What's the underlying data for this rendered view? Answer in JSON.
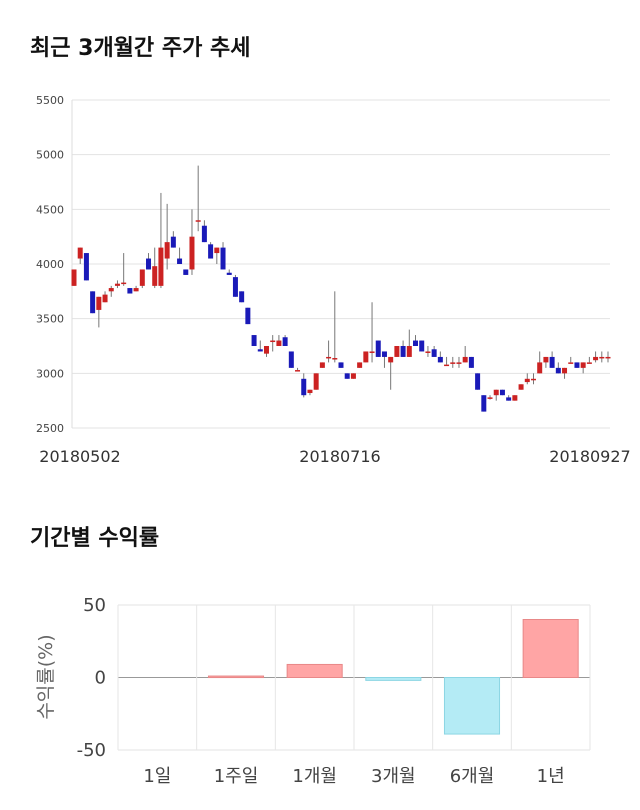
{
  "sections": {
    "price_title": "최근 3개월간 주가 추세",
    "return_title": "기간별 수익률"
  },
  "chart_data": [
    {
      "type": "candlestick",
      "title": "최근 3개월간 주가 추세",
      "ylim": [
        2500,
        5500
      ],
      "yticks": [
        2500,
        3000,
        3500,
        4000,
        4500,
        5000,
        5500
      ],
      "xtick_labels": [
        "20180502",
        "20180716",
        "20180927"
      ],
      "grid": true,
      "colors": {
        "up": "#cc2222",
        "down": "#1a1ab8",
        "wick": "#777777"
      },
      "ohlc": [
        [
          3800,
          3950,
          3800,
          3950
        ],
        [
          4050,
          4150,
          4000,
          4150
        ],
        [
          4100,
          4100,
          3850,
          3850
        ],
        [
          3750,
          3750,
          3550,
          3550
        ],
        [
          3580,
          3700,
          3420,
          3700
        ],
        [
          3650,
          3750,
          3650,
          3720
        ],
        [
          3750,
          3800,
          3700,
          3780
        ],
        [
          3800,
          3850,
          3780,
          3820
        ],
        [
          3820,
          4100,
          3800,
          3830
        ],
        [
          3780,
          3780,
          3730,
          3730
        ],
        [
          3750,
          3800,
          3750,
          3780
        ],
        [
          3800,
          3950,
          3780,
          3950
        ],
        [
          4050,
          4100,
          3950,
          3950
        ],
        [
          3800,
          4150,
          3780,
          3980
        ],
        [
          3800,
          4650,
          3780,
          4150
        ],
        [
          4050,
          4550,
          3950,
          4200
        ],
        [
          4250,
          4300,
          4150,
          4150
        ],
        [
          4050,
          4150,
          4000,
          4000
        ],
        [
          3950,
          3950,
          3900,
          3900
        ],
        [
          3950,
          4500,
          3900,
          4250
        ],
        [
          4400,
          4900,
          4300,
          4400
        ],
        [
          4350,
          4400,
          4200,
          4200
        ],
        [
          4180,
          4200,
          4050,
          4050
        ],
        [
          4100,
          4150,
          4000,
          4150
        ],
        [
          4150,
          4200,
          3950,
          3950
        ],
        [
          3920,
          3950,
          3900,
          3900
        ],
        [
          3880,
          3900,
          3700,
          3700
        ],
        [
          3750,
          3750,
          3650,
          3650
        ],
        [
          3600,
          3600,
          3450,
          3450
        ],
        [
          3350,
          3350,
          3250,
          3250
        ],
        [
          3220,
          3300,
          3200,
          3200
        ],
        [
          3180,
          3250,
          3150,
          3250
        ],
        [
          3300,
          3350,
          3200,
          3300
        ],
        [
          3250,
          3350,
          3250,
          3300
        ],
        [
          3330,
          3350,
          3250,
          3250
        ],
        [
          3200,
          3200,
          3050,
          3050
        ],
        [
          3030,
          3050,
          3030,
          3030
        ],
        [
          2950,
          3000,
          2780,
          2800
        ],
        [
          2820,
          2850,
          2800,
          2850
        ],
        [
          2850,
          3000,
          2850,
          3000
        ],
        [
          3050,
          3100,
          3050,
          3100
        ],
        [
          3150,
          3300,
          3100,
          3150
        ],
        [
          3140,
          3750,
          3100,
          3140
        ],
        [
          3100,
          3100,
          3050,
          3050
        ],
        [
          3000,
          3000,
          2950,
          2950
        ],
        [
          2950,
          3000,
          2950,
          3000
        ],
        [
          3050,
          3100,
          3050,
          3100
        ],
        [
          3100,
          3200,
          3100,
          3200
        ],
        [
          3200,
          3650,
          3100,
          3200
        ],
        [
          3300,
          3300,
          3150,
          3150
        ],
        [
          3200,
          3200,
          3050,
          3150
        ],
        [
          3100,
          3150,
          2850,
          3150
        ],
        [
          3150,
          3250,
          3150,
          3250
        ],
        [
          3250,
          3300,
          3150,
          3150
        ],
        [
          3150,
          3400,
          3150,
          3250
        ],
        [
          3300,
          3350,
          3250,
          3250
        ],
        [
          3300,
          3300,
          3200,
          3200
        ],
        [
          3200,
          3250,
          3150,
          3200
        ],
        [
          3220,
          3250,
          3150,
          3150
        ],
        [
          3150,
          3200,
          3100,
          3100
        ],
        [
          3080,
          3150,
          3080,
          3080
        ],
        [
          3100,
          3150,
          3050,
          3100
        ],
        [
          3100,
          3150,
          3050,
          3100
        ],
        [
          3100,
          3250,
          3100,
          3150
        ],
        [
          3150,
          3150,
          3050,
          3050
        ],
        [
          3000,
          3000,
          2850,
          2850
        ],
        [
          2800,
          2800,
          2650,
          2650
        ],
        [
          2780,
          2800,
          2760,
          2780
        ],
        [
          2800,
          2850,
          2750,
          2850
        ],
        [
          2850,
          2850,
          2800,
          2800
        ],
        [
          2780,
          2800,
          2750,
          2750
        ],
        [
          2750,
          2800,
          2750,
          2800
        ],
        [
          2850,
          2900,
          2850,
          2900
        ],
        [
          2920,
          3000,
          2900,
          2950
        ],
        [
          2950,
          3000,
          2900,
          2950
        ],
        [
          3000,
          3200,
          3000,
          3100
        ],
        [
          3100,
          3150,
          3050,
          3150
        ],
        [
          3150,
          3200,
          3050,
          3050
        ],
        [
          3050,
          3100,
          3000,
          3000
        ],
        [
          3000,
          3050,
          2950,
          3050
        ],
        [
          3100,
          3150,
          3100,
          3100
        ],
        [
          3100,
          3100,
          3050,
          3050
        ],
        [
          3050,
          3100,
          3000,
          3100
        ],
        [
          3100,
          3150,
          3100,
          3100
        ],
        [
          3120,
          3200,
          3100,
          3150
        ],
        [
          3150,
          3200,
          3100,
          3150
        ],
        [
          3150,
          3200,
          3100,
          3150
        ]
      ]
    },
    {
      "type": "bar",
      "categories": [
        "1일",
        "1주일",
        "1개월",
        "3개월",
        "6개월",
        "1년"
      ],
      "values": [
        0,
        1,
        9,
        -2,
        -39,
        40
      ],
      "ylabel": "수익률(%)",
      "ylim": [
        -50,
        50
      ],
      "yticks": [
        -50,
        0,
        50
      ],
      "grid": true,
      "colors": {
        "positive": "#ffa5a5",
        "negative": "#b4ebf5",
        "positive_edge": "#e88888",
        "negative_edge": "#8cd6e4"
      }
    }
  ]
}
